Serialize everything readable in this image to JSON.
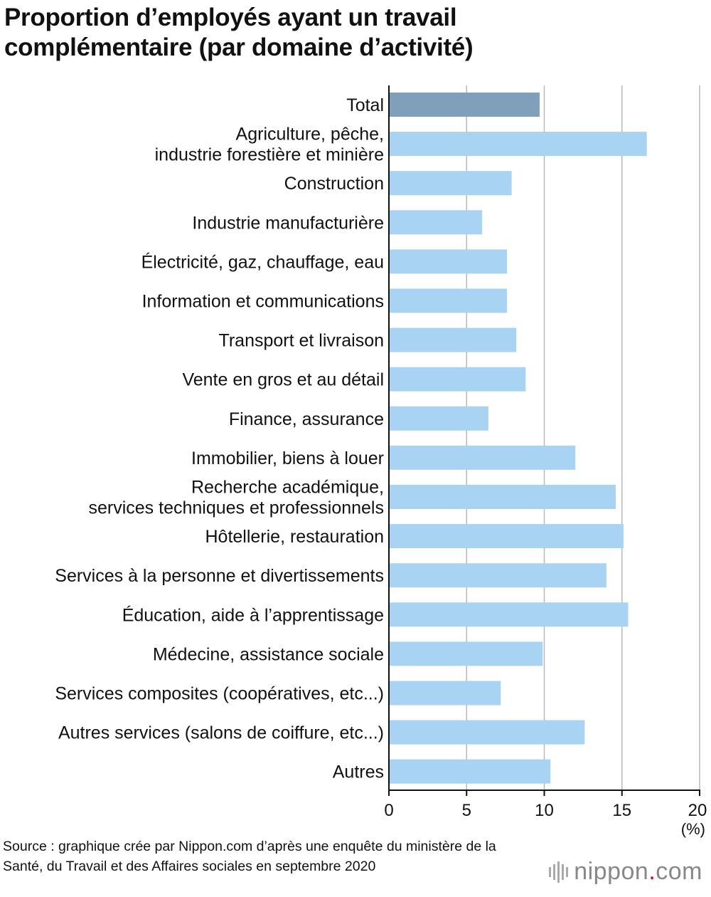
{
  "title_lines": [
    "Proportion d’employés ayant un travail",
    "complémentaire (par domaine d’activité)"
  ],
  "chart_data": {
    "type": "bar",
    "orientation": "horizontal",
    "title": "Proportion d’employés ayant un travail complémentaire (par domaine d’activité)",
    "categories": [
      "Total",
      "Agriculture, pêche,\nindustrie forestière et minière",
      "Construction",
      "Industrie manufacturière",
      "Électricité, gaz, chauffage, eau",
      "Information et communications",
      "Transport et livraison",
      "Vente en gros et au détail",
      "Finance, assurance",
      "Immobilier, biens à louer",
      "Recherche académique,\nservices techniques et professionnels",
      "Hôtellerie, restauration",
      "Services à la personne et divertissements",
      "Éducation, aide à l’apprentissage",
      "Médecine, assistance sociale",
      "Services composites (coopératives, etc...)",
      "Autres services (salons de coiffure, etc...)",
      "Autres"
    ],
    "values": [
      9.7,
      16.6,
      7.9,
      6.0,
      7.6,
      7.6,
      8.2,
      8.8,
      6.4,
      12.0,
      14.6,
      15.1,
      14.0,
      15.4,
      9.9,
      7.2,
      12.6,
      10.4
    ],
    "highlight_index": 0,
    "colors": {
      "highlight": "#7f9fba",
      "bar": "#a9d3f2",
      "grid": "#b8b8b8",
      "axis": "#111111"
    },
    "xlim": [
      0,
      20
    ],
    "xticks": [
      0,
      5,
      10,
      15,
      20
    ],
    "xunit": "(%)",
    "grid": true
  },
  "source": "Source : graphique crée par Nippon.com d’après une enquête du ministère de la Santé, du Travail et des Affaires sociales en septembre 2020",
  "logo": {
    "name": "nippon",
    "dot": ".",
    "suffix": "com"
  }
}
